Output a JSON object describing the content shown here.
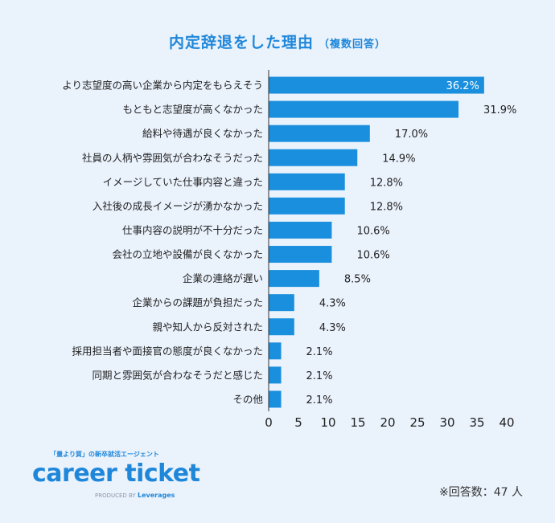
{
  "title": {
    "main": "内定辞退をした理由",
    "sub": "（複数回答）"
  },
  "chart_data": {
    "type": "bar",
    "orientation": "horizontal",
    "categories": [
      "より志望度の高い企業から内定をもらえそう",
      "もともと志望度が高くなかった",
      "給料や待遇が良くなかった",
      "社員の人柄や雰囲気が合わなそうだった",
      "イメージしていた仕事内容と違った",
      "入社後の成長イメージが湧かなかった",
      "仕事内容の説明が不十分だった",
      "会社の立地や設備が良くなかった",
      "企業の連絡が遅い",
      "企業からの課題が負担だった",
      "親や知人から反対された",
      "採用担当者や面接官の態度が良くなかった",
      "同期と雰囲気が合わなそうだと感じた",
      "その他"
    ],
    "values": [
      36.2,
      31.9,
      17.0,
      14.9,
      12.8,
      12.8,
      10.6,
      10.6,
      8.5,
      4.3,
      4.3,
      2.1,
      2.1,
      2.1
    ],
    "value_labels": [
      "36.2%",
      "31.9%",
      "17.0%",
      "14.9%",
      "12.8%",
      "12.8%",
      "10.6%",
      "10.6%",
      "8.5%",
      "4.3%",
      "4.3%",
      "2.1%",
      "2.1%",
      "2.1%"
    ],
    "xlim": [
      0,
      40
    ],
    "xticks": [
      "0",
      "5",
      "10",
      "15",
      "20",
      "25",
      "30",
      "35",
      "40"
    ],
    "bar_color": "#1a8fde",
    "grid": false
  },
  "footer": {
    "tagline": "「量より質」の新卒就活エージェント",
    "brand": "career ticket",
    "produced": "PRODUCED BY",
    "producer": "Leverages",
    "note": "※回答数：47 人"
  },
  "colors": {
    "background": "#eaf2fc",
    "accent": "#1f87d9",
    "bar": "#1a8fde"
  }
}
